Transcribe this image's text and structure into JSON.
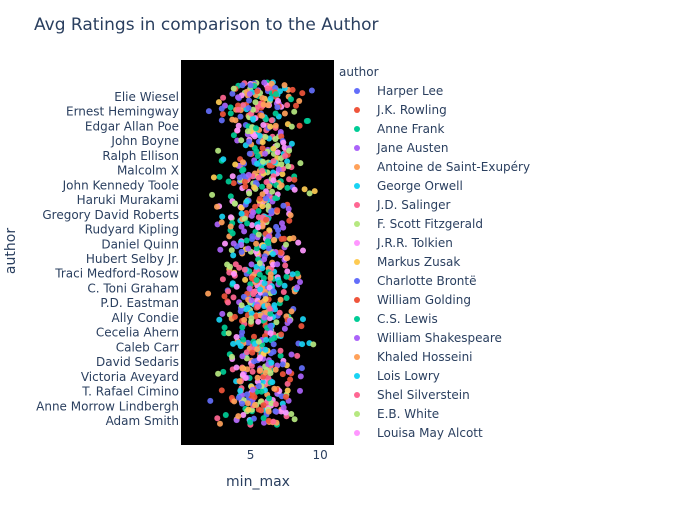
{
  "chart_data": {
    "type": "scatter",
    "title": "Avg Ratings in comparison to the Author",
    "xlabel": "min_max",
    "ylabel": "author",
    "xlim": [
      0,
      11
    ],
    "x_ticks": [
      5,
      10
    ],
    "y_tick_labels": [
      "Elie Wiesel",
      "Ernest Hemingway",
      "Edgar Allan Poe",
      "John Boyne",
      "Ralph Ellison",
      "Malcolm X",
      "John Kennedy Toole",
      "Haruki Murakami",
      "Gregory David Roberts",
      "Rudyard Kipling",
      "Daniel Quinn",
      "Hubert Selby Jr.",
      "Traci Medford-Rosow",
      "C. Toni Graham",
      "P.D. Eastman",
      "Ally Condie",
      "Cecelia Ahern",
      "Caleb Carr",
      "David Sedaris",
      "Victoria Aveyard",
      "T. Rafael Cimino",
      "Anne Morrow Lindbergh",
      "Adam Smith"
    ],
    "legend_title": "author",
    "legend_position": "right",
    "plot_background": "#000000",
    "grid": false,
    "series": [
      {
        "name": "Harper Lee",
        "color": "#636efa"
      },
      {
        "name": "J.K. Rowling",
        "color": "#EF553B"
      },
      {
        "name": "Anne Frank",
        "color": "#00cc96"
      },
      {
        "name": "Jane Austen",
        "color": "#ab63fa"
      },
      {
        "name": "Antoine de Saint-Exupéry",
        "color": "#FFA15A"
      },
      {
        "name": "George Orwell",
        "color": "#19d3f3"
      },
      {
        "name": "J.D. Salinger",
        "color": "#FF6692"
      },
      {
        "name": "F. Scott Fitzgerald",
        "color": "#B6E880"
      },
      {
        "name": "J.R.R. Tolkien",
        "color": "#FF97FF"
      },
      {
        "name": "Markus Zusak",
        "color": "#FECB52"
      },
      {
        "name": "Charlotte Brontë",
        "color": "#636efa"
      },
      {
        "name": "William Golding",
        "color": "#EF553B"
      },
      {
        "name": "C.S. Lewis",
        "color": "#00cc96"
      },
      {
        "name": "William Shakespeare",
        "color": "#ab63fa"
      },
      {
        "name": "Khaled Hosseini",
        "color": "#FFA15A"
      },
      {
        "name": "Lois Lowry",
        "color": "#19d3f3"
      },
      {
        "name": "Shel Silverstein",
        "color": "#FF6692"
      },
      {
        "name": "E.B. White",
        "color": "#B6E880"
      },
      {
        "name": "Louisa May Alcott",
        "color": "#FF97FF"
      }
    ],
    "x_distribution": {
      "center": 5.7,
      "spread": 1.3
    },
    "point_count": 900
  }
}
